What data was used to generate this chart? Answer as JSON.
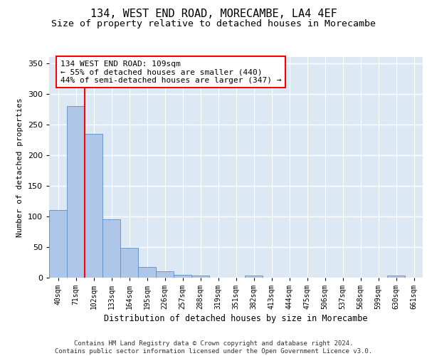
{
  "title": "134, WEST END ROAD, MORECAMBE, LA4 4EF",
  "subtitle": "Size of property relative to detached houses in Morecambe",
  "xlabel": "Distribution of detached houses by size in Morecambe",
  "ylabel": "Number of detached properties",
  "bar_labels": [
    "40sqm",
    "71sqm",
    "102sqm",
    "133sqm",
    "164sqm",
    "195sqm",
    "226sqm",
    "257sqm",
    "288sqm",
    "319sqm",
    "351sqm",
    "382sqm",
    "413sqm",
    "444sqm",
    "475sqm",
    "506sqm",
    "537sqm",
    "568sqm",
    "599sqm",
    "630sqm",
    "661sqm"
  ],
  "bar_values": [
    110,
    280,
    235,
    95,
    49,
    18,
    10,
    5,
    4,
    0,
    0,
    3,
    0,
    0,
    0,
    0,
    0,
    0,
    0,
    3,
    0
  ],
  "bar_color": "#aec6e8",
  "bar_edge_color": "#5a8fc2",
  "background_color": "#dce9f5",
  "grid_color": "#ffffff",
  "annotation_box_text": "134 WEST END ROAD: 109sqm\n← 55% of detached houses are smaller (440)\n44% of semi-detached houses are larger (347) →",
  "vline_x": 1.5,
  "vline_color": "red",
  "ylim": [
    0,
    360
  ],
  "yticks": [
    0,
    50,
    100,
    150,
    200,
    250,
    300,
    350
  ],
  "footer_text": "Contains HM Land Registry data © Crown copyright and database right 2024.\nContains public sector information licensed under the Open Government Licence v3.0.",
  "title_fontsize": 11,
  "subtitle_fontsize": 9.5,
  "annotation_fontsize": 8,
  "footer_fontsize": 6.5,
  "ylabel_fontsize": 8,
  "xlabel_fontsize": 8.5,
  "tick_fontsize": 7
}
